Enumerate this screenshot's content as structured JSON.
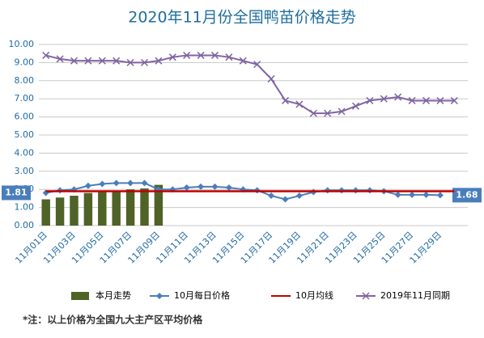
{
  "chart_data": {
    "type": "combo",
    "title": "2020年11月份全国鸭苗价格走势",
    "note": "*注：以上价格为全国九大主产区平均价格",
    "categories": [
      "11月01日",
      null,
      "11月03日",
      null,
      "11月05日",
      null,
      "11月07日",
      null,
      "11月09日",
      null,
      "11月11日",
      null,
      "11月13日",
      null,
      "11月15日",
      null,
      "11月17日",
      null,
      "11月19日",
      null,
      "11月21日",
      null,
      "11月23日",
      null,
      "11月25日",
      null,
      "11月27日",
      null,
      "11月29日",
      null
    ],
    "ylim": [
      0,
      10
    ],
    "yticks": [
      {
        "value": 0,
        "label": "0.00"
      },
      {
        "value": 1,
        "label": "1.00"
      },
      {
        "value": 2,
        "label": "2.00"
      },
      {
        "value": 3,
        "label": "3.00"
      },
      {
        "value": 4,
        "label": "4.00"
      },
      {
        "value": 5,
        "label": "5.00"
      },
      {
        "value": 6,
        "label": "6.00"
      },
      {
        "value": 7,
        "label": "7.00"
      },
      {
        "value": 8,
        "label": "8.00"
      },
      {
        "value": 9,
        "label": "9.00"
      },
      {
        "value": 10,
        "label": "10.00"
      }
    ],
    "grid": true,
    "series": [
      {
        "name": "本月走势",
        "type": "bar",
        "color": "#4f6228",
        "values": [
          1.45,
          1.55,
          1.65,
          1.8,
          1.85,
          1.9,
          2.0,
          2.05,
          2.25,
          null,
          null,
          null,
          null,
          null,
          null,
          null,
          null,
          null,
          null,
          null,
          null,
          null,
          null,
          null,
          null,
          null,
          null,
          null,
          null,
          null
        ]
      },
      {
        "name": "10月每日价格",
        "type": "line",
        "marker": "diamond",
        "color": "#4a7ebb",
        "values": [
          1.81,
          1.95,
          2.0,
          2.2,
          2.3,
          2.35,
          2.35,
          2.35,
          2.0,
          2.0,
          2.1,
          2.15,
          2.15,
          2.1,
          2.0,
          1.95,
          1.65,
          1.45,
          1.65,
          1.85,
          1.95,
          1.95,
          1.95,
          1.95,
          1.9,
          1.7,
          1.7,
          1.7,
          1.68,
          null
        ],
        "value_labels": [
          "1.81",
          null,
          null,
          null,
          null,
          null,
          null,
          null,
          null,
          null,
          null,
          null,
          null,
          null,
          null,
          null,
          null,
          null,
          null,
          null,
          null,
          null,
          null,
          null,
          null,
          null,
          null,
          null,
          "1.68",
          null
        ]
      },
      {
        "name": "10月均线",
        "type": "line",
        "marker": "none",
        "color": "#c00000",
        "values": [
          1.9,
          1.9,
          1.9,
          1.9,
          1.9,
          1.9,
          1.9,
          1.9,
          1.9,
          1.9,
          1.9,
          1.9,
          1.9,
          1.9,
          1.9,
          1.9,
          1.9,
          1.9,
          1.9,
          1.9,
          1.9,
          1.9,
          1.9,
          1.9,
          1.9,
          1.9,
          1.9,
          1.9,
          1.9,
          1.9
        ]
      },
      {
        "name": "2019年11月同期",
        "type": "line",
        "marker": "x",
        "color": "#8064a2",
        "values": [
          9.4,
          9.2,
          9.1,
          9.1,
          9.1,
          9.1,
          9.0,
          9.0,
          9.1,
          9.3,
          9.4,
          9.4,
          9.4,
          9.3,
          9.1,
          8.9,
          8.1,
          6.9,
          6.7,
          6.2,
          6.2,
          6.3,
          6.6,
          6.9,
          7.0,
          7.1,
          6.9,
          6.9,
          6.9,
          6.9
        ]
      }
    ]
  }
}
